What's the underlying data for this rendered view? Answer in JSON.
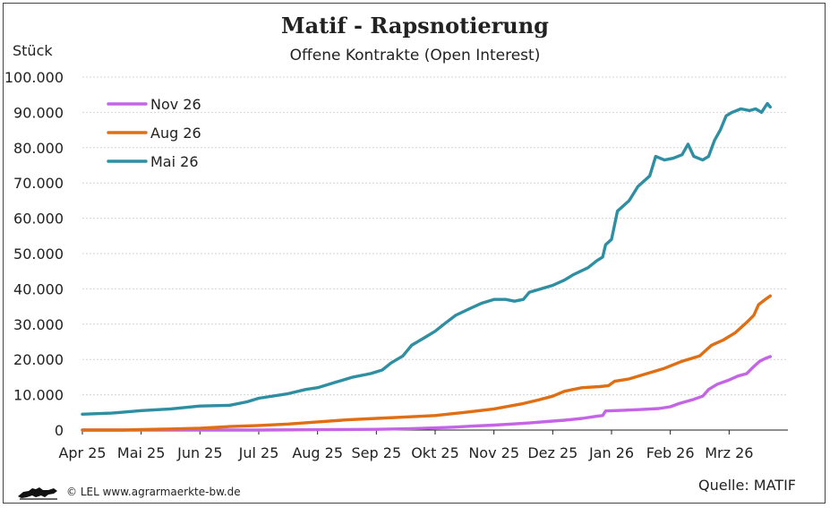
{
  "chart_data": {
    "type": "line",
    "title": "Matif - Rapsnotierung",
    "subtitle": "Offene Kontrakte (Open Interest)",
    "ylabel": "Stück",
    "xlabel": "",
    "ylim": [
      0,
      100000
    ],
    "y_ticks": [
      "0",
      "10.000",
      "20.000",
      "30.000",
      "40.000",
      "50.000",
      "60.000",
      "70.000",
      "80.000",
      "90.000",
      "100.000"
    ],
    "y_tick_values": [
      0,
      10000,
      20000,
      30000,
      40000,
      50000,
      60000,
      70000,
      80000,
      90000,
      100000
    ],
    "x_ticks": [
      "Apr 25",
      "Mai 25",
      "Jun 25",
      "Jul 25",
      "Aug 25",
      "Sep 25",
      "Okt 25",
      "Nov 25",
      "Dez 25",
      "Jan 26",
      "Feb 26",
      "Mrz 26"
    ],
    "xlim": [
      0,
      12
    ],
    "grid": true,
    "legend_position": "top-left",
    "series": [
      {
        "name": "Nov 26",
        "color": "#c465e6",
        "points": [
          [
            0,
            0
          ],
          [
            1,
            0
          ],
          [
            2,
            0
          ],
          [
            3,
            0
          ],
          [
            4,
            100
          ],
          [
            5,
            200
          ],
          [
            5.6,
            400
          ],
          [
            6,
            600
          ],
          [
            6.3,
            800
          ],
          [
            6.6,
            1100
          ],
          [
            7,
            1400
          ],
          [
            7.3,
            1700
          ],
          [
            7.6,
            2000
          ],
          [
            7.9,
            2400
          ],
          [
            8.2,
            2800
          ],
          [
            8.5,
            3300
          ],
          [
            8.75,
            3900
          ],
          [
            8.85,
            4100
          ],
          [
            8.9,
            5400
          ],
          [
            9.2,
            5600
          ],
          [
            9.5,
            5800
          ],
          [
            9.8,
            6100
          ],
          [
            10,
            6600
          ],
          [
            10.15,
            7500
          ],
          [
            10.4,
            8700
          ],
          [
            10.55,
            9600
          ],
          [
            10.65,
            11500
          ],
          [
            10.8,
            13000
          ],
          [
            11,
            14200
          ],
          [
            11.15,
            15300
          ],
          [
            11.3,
            16000
          ],
          [
            11.42,
            18000
          ],
          [
            11.52,
            19500
          ],
          [
            11.62,
            20300
          ],
          [
            11.7,
            20800
          ]
        ]
      },
      {
        "name": "Aug 26",
        "color": "#e06e12",
        "points": [
          [
            0,
            0
          ],
          [
            0.7,
            0
          ],
          [
            1,
            150
          ],
          [
            1.5,
            300
          ],
          [
            2,
            500
          ],
          [
            2.5,
            1000
          ],
          [
            3,
            1300
          ],
          [
            3.5,
            1700
          ],
          [
            4,
            2300
          ],
          [
            4.5,
            2900
          ],
          [
            5,
            3300
          ],
          [
            5.5,
            3700
          ],
          [
            6,
            4100
          ],
          [
            6.5,
            5000
          ],
          [
            7,
            6000
          ],
          [
            7.5,
            7500
          ],
          [
            7.75,
            8500
          ],
          [
            8,
            9600
          ],
          [
            8.2,
            11000
          ],
          [
            8.5,
            12000
          ],
          [
            8.8,
            12300
          ],
          [
            8.95,
            12600
          ],
          [
            9.05,
            13800
          ],
          [
            9.3,
            14500
          ],
          [
            9.6,
            16000
          ],
          [
            9.9,
            17500
          ],
          [
            10.2,
            19500
          ],
          [
            10.5,
            21000
          ],
          [
            10.7,
            24000
          ],
          [
            10.9,
            25500
          ],
          [
            11.1,
            27500
          ],
          [
            11.3,
            30500
          ],
          [
            11.42,
            32500
          ],
          [
            11.5,
            35500
          ],
          [
            11.6,
            36800
          ],
          [
            11.7,
            38000
          ]
        ]
      },
      {
        "name": "Mai 26",
        "color": "#2e8fa2",
        "points": [
          [
            0,
            4500
          ],
          [
            0.5,
            4800
          ],
          [
            1,
            5500
          ],
          [
            1.5,
            6000
          ],
          [
            2,
            6800
          ],
          [
            2.5,
            7000
          ],
          [
            2.8,
            8000
          ],
          [
            3,
            9000
          ],
          [
            3.5,
            10300
          ],
          [
            3.8,
            11500
          ],
          [
            4,
            12000
          ],
          [
            4.3,
            13500
          ],
          [
            4.6,
            15000
          ],
          [
            4.9,
            16000
          ],
          [
            5.1,
            17000
          ],
          [
            5.25,
            19000
          ],
          [
            5.45,
            21000
          ],
          [
            5.6,
            24000
          ],
          [
            5.8,
            26000
          ],
          [
            6,
            28000
          ],
          [
            6.15,
            30000
          ],
          [
            6.35,
            32500
          ],
          [
            6.6,
            34500
          ],
          [
            6.8,
            36000
          ],
          [
            7,
            37000
          ],
          [
            7.2,
            37000
          ],
          [
            7.35,
            36500
          ],
          [
            7.5,
            37000
          ],
          [
            7.6,
            39000
          ],
          [
            7.8,
            40000
          ],
          [
            8,
            41000
          ],
          [
            8.2,
            42500
          ],
          [
            8.35,
            44000
          ],
          [
            8.6,
            46000
          ],
          [
            8.75,
            48000
          ],
          [
            8.85,
            49000
          ],
          [
            8.9,
            52500
          ],
          [
            9.0,
            54000
          ],
          [
            9.1,
            62000
          ],
          [
            9.3,
            65000
          ],
          [
            9.45,
            69000
          ],
          [
            9.65,
            72000
          ],
          [
            9.75,
            77500
          ],
          [
            9.9,
            76500
          ],
          [
            10.05,
            77000
          ],
          [
            10.2,
            78000
          ],
          [
            10.3,
            81000
          ],
          [
            10.4,
            77500
          ],
          [
            10.55,
            76500
          ],
          [
            10.65,
            77500
          ],
          [
            10.75,
            82000
          ],
          [
            10.85,
            85000
          ],
          [
            10.95,
            89000
          ],
          [
            11.05,
            90000
          ],
          [
            11.2,
            91000
          ],
          [
            11.35,
            90500
          ],
          [
            11.45,
            91000
          ],
          [
            11.55,
            90000
          ],
          [
            11.65,
            92500
          ],
          [
            11.7,
            91500
          ]
        ]
      }
    ]
  },
  "source": "Quelle: MATIF",
  "footer": {
    "copyright": "© LEL www.agrarmaerkte-bw.de",
    "logo_icon": "lion-logo-icon"
  }
}
